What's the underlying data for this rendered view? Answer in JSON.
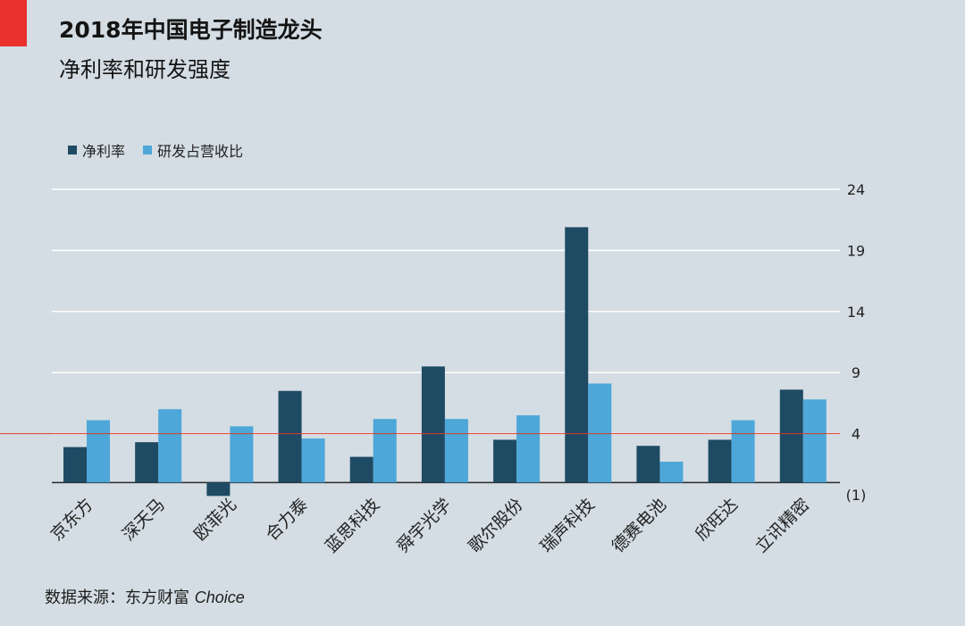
{
  "title": "2018年中国电子制造龙头",
  "subtitle": "净利率和研发强度",
  "source": {
    "label": "数据来源：东方财富 ",
    "brand": "Choice"
  },
  "colors": {
    "accent": "#e8312a",
    "net_margin": "#1e4a64",
    "rd_ratio": "#4da7d8",
    "reference_line": "#e03a2a",
    "negative_tick": "#d9312a"
  },
  "legend": [
    "净利率",
    "研发占营收比"
  ],
  "chart_data": {
    "type": "bar",
    "categories": [
      "京东方",
      "深天马",
      "欧菲光",
      "合力泰",
      "蓝思科技",
      "舜宇光学",
      "歌尔股份",
      "瑞声科技",
      "德赛电池",
      "欣旺达",
      "立讯精密"
    ],
    "series": [
      {
        "name": "净利率",
        "values": [
          2.9,
          3.3,
          -1.1,
          7.5,
          2.1,
          9.5,
          3.5,
          20.9,
          3.0,
          3.5,
          7.6
        ]
      },
      {
        "name": "研发占营收比",
        "values": [
          5.1,
          6.0,
          4.6,
          3.6,
          5.2,
          5.2,
          5.5,
          8.1,
          1.7,
          5.1,
          6.8
        ]
      }
    ],
    "yticks": [
      "24",
      "19",
      "14",
      "9",
      "4",
      "(1)"
    ],
    "ytick_values": [
      24,
      19,
      14,
      9,
      4,
      -1
    ],
    "ylim": [
      -1,
      24
    ],
    "reference_line": 4,
    "grid": true,
    "y_axis_side": "right",
    "legend_position": "top-left"
  }
}
